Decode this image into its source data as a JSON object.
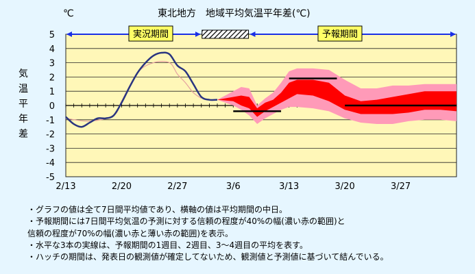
{
  "chart_data": {
    "type": "line",
    "title": "東北地方　地域平均気温平年差(℃)",
    "unit_label": "℃",
    "ylabel": "気温平年差",
    "ylim": [
      -5,
      5
    ],
    "yticks": [
      5,
      4,
      3,
      2,
      1,
      0,
      -1,
      -2,
      -3,
      -4,
      -5
    ],
    "x_range": [
      "2/13",
      "4/3"
    ],
    "xticks": [
      "2/13",
      "2/20",
      "2/27",
      "3/6",
      "3/13",
      "3/20",
      "3/27"
    ],
    "grid": true,
    "period_labels": {
      "observed": "実況期間",
      "forecast": "予報期間"
    },
    "observed_series": {
      "x": [
        "2/13",
        "2/14",
        "2/15",
        "2/16",
        "2/17",
        "2/18",
        "2/19",
        "2/20",
        "2/21",
        "2/22",
        "2/23",
        "2/24",
        "2/25",
        "2/26",
        "2/27",
        "2/28",
        "3/1",
        "3/2",
        "3/3",
        "3/4"
      ],
      "values": [
        -0.8,
        -1.3,
        -1.5,
        -1.2,
        -0.9,
        -0.9,
        -0.7,
        0.2,
        1.3,
        2.3,
        3.0,
        3.5,
        3.7,
        3.6,
        2.8,
        2.4,
        1.5,
        0.6,
        0.4,
        0.4
      ]
    },
    "normal_line": {
      "x": [
        "2/13",
        "2/16",
        "2/19",
        "2/20",
        "2/22",
        "2/24",
        "2/26",
        "2/27",
        "2/28",
        "3/1",
        "3/2"
      ],
      "values": [
        -0.9,
        -1.1,
        -0.7,
        0.3,
        2.3,
        3.0,
        3.0,
        2.2,
        1.6,
        0.9,
        0.5
      ]
    },
    "forecast_band_70": {
      "x": [
        "3/4",
        "3/6",
        "3/7",
        "3/8",
        "3/9",
        "3/10",
        "3/11",
        "3/12",
        "3/13",
        "3/14",
        "3/16",
        "3/18",
        "3/20",
        "3/22",
        "3/24",
        "3/26",
        "3/28",
        "3/30",
        "4/1",
        "4/3"
      ],
      "upper": [
        0.4,
        1.0,
        1.3,
        1.2,
        0.0,
        0.5,
        0.9,
        1.6,
        2.4,
        2.6,
        2.6,
        2.5,
        1.8,
        1.2,
        1.2,
        1.4,
        1.4,
        1.5,
        1.5,
        1.5
      ],
      "lower": [
        0.4,
        0.0,
        -0.3,
        -0.7,
        -1.3,
        -0.9,
        -0.6,
        -0.3,
        -0.1,
        -0.1,
        -0.2,
        -0.4,
        -0.9,
        -1.2,
        -1.3,
        -1.3,
        -1.1,
        -1.0,
        -1.0,
        -1.1
      ]
    },
    "forecast_band_40": {
      "x": [
        "3/4",
        "3/6",
        "3/7",
        "3/8",
        "3/9",
        "3/10",
        "3/11",
        "3/12",
        "3/13",
        "3/14",
        "3/16",
        "3/18",
        "3/20",
        "3/22",
        "3/24",
        "3/26",
        "3/28",
        "3/30",
        "4/1",
        "4/3"
      ],
      "upper": [
        0.4,
        0.6,
        0.7,
        0.6,
        -0.2,
        0.2,
        0.4,
        0.9,
        1.6,
        1.8,
        1.8,
        1.6,
        0.7,
        0.3,
        0.4,
        0.6,
        0.8,
        1.0,
        1.0,
        1.0
      ],
      "lower": [
        0.4,
        0.3,
        0.0,
        -0.2,
        -0.8,
        -0.4,
        -0.1,
        0.2,
        0.5,
        0.8,
        0.7,
        0.3,
        -0.3,
        -0.6,
        -0.6,
        -0.6,
        -0.5,
        -0.3,
        -0.3,
        -0.4
      ]
    },
    "weekly_means": [
      {
        "label": "1週目",
        "x": [
          "3/6",
          "3/12"
        ],
        "value": -0.4
      },
      {
        "label": "2週目",
        "x": [
          "3/13",
          "3/19"
        ],
        "value": 1.9
      },
      {
        "label": "3〜4週目",
        "x": [
          "3/20",
          "4/3"
        ],
        "value": 0.0
      }
    ],
    "colors": {
      "observed": "#2a3580",
      "normal": "#e4a0a0",
      "band_70": "#ff9ab8",
      "band_40": "#ff0000",
      "weekly": "#000000",
      "plot_bg": "#fff7b8",
      "arrow": "#1a2fe6",
      "label_box": "#ffff66"
    }
  },
  "notes": [
    "・グラフの値は全て7日間平均値であり、横軸の値は平均期間の中日。",
    "・予報期間には7日間平均気温の予測に対する信頼の程度が40%の幅(濃い赤の範囲)と",
    "信頼の程度が70%の幅(濃い赤と薄い赤の範囲)を表示。",
    "・水平な3本の実線は、予報期間の1週目、2週目、3～4週目の平均を表す。",
    "・ハッチの期間は、発表日の観測値が確定してないため、観測値と予測値に基づいて結んでいる。"
  ]
}
